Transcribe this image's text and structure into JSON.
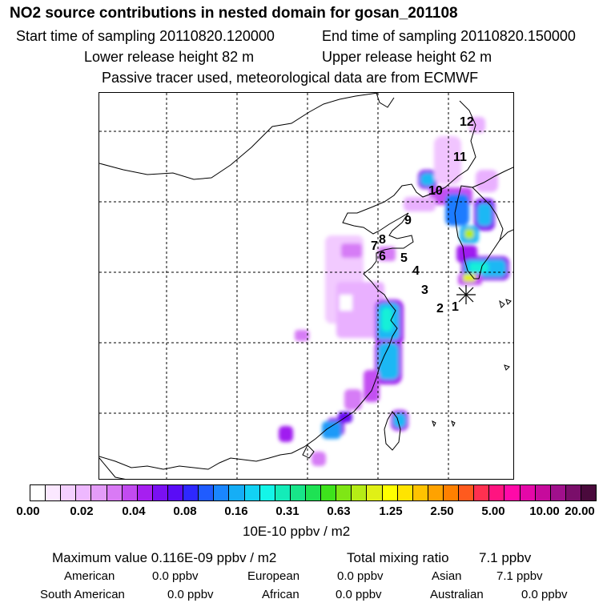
{
  "header": {
    "title": "NO2 source contributions in nested domain for gosan_201108",
    "start_time": "Start time of sampling 20110820.120000",
    "end_time": "End time of sampling 20110820.150000",
    "lower_height": "Lower release height   82 m",
    "upper_height": "Upper release height   62 m",
    "note": "Passive tracer used, meteorological data are from ECMWF"
  },
  "map": {
    "trajectory_labels": [
      "1",
      "2",
      "3",
      "4",
      "5",
      "6",
      "7",
      "8",
      "9",
      "10",
      "11",
      "12"
    ],
    "receptor_marker": "star-receptor-icon"
  },
  "colorbar": {
    "colors": [
      "#ffffff",
      "#fbe8ff",
      "#f4d0ff",
      "#eeb8ff",
      "#e49cf8",
      "#d97af5",
      "#c24bf0",
      "#a61ff0",
      "#7a10f2",
      "#5a0cf6",
      "#2e28ff",
      "#1f5cff",
      "#1a86ff",
      "#15aef6",
      "#12d2f4",
      "#14f5e8",
      "#14ecb9",
      "#18e589",
      "#1ee254",
      "#3ee31c",
      "#7fe615",
      "#b5ec16",
      "#e0f016",
      "#ffff00",
      "#ffe400",
      "#ffc300",
      "#ffa200",
      "#ff8000",
      "#ff5a1e",
      "#ff3050",
      "#ff1480",
      "#ff0aa8",
      "#e408a8",
      "#c60a9c",
      "#a0108c",
      "#7a0e6a",
      "#4a0a3c"
    ],
    "tick_labels": [
      "0.00",
      "0.02",
      "0.04",
      "0.08",
      "0.16",
      "0.31",
      "0.63",
      "1.25",
      "2.50",
      "5.00",
      "10.00",
      "20.00"
    ],
    "unit": "10E-10 ppbv / m2"
  },
  "summary": {
    "max_value": "Maximum value  0.116E-09 ppbv / m2",
    "total_label": "Total mixing ratio",
    "total_value": "7.1 ppbv",
    "regions": [
      {
        "name": "American",
        "value": "0.0 ppbv"
      },
      {
        "name": "European",
        "value": "0.0 ppbv"
      },
      {
        "name": "Asian",
        "value": "7.1 ppbv"
      },
      {
        "name": "South American",
        "value": "0.0 ppbv"
      },
      {
        "name": "African",
        "value": "0.0 ppbv"
      },
      {
        "name": "Australian",
        "value": "0.0 ppbv"
      }
    ]
  }
}
